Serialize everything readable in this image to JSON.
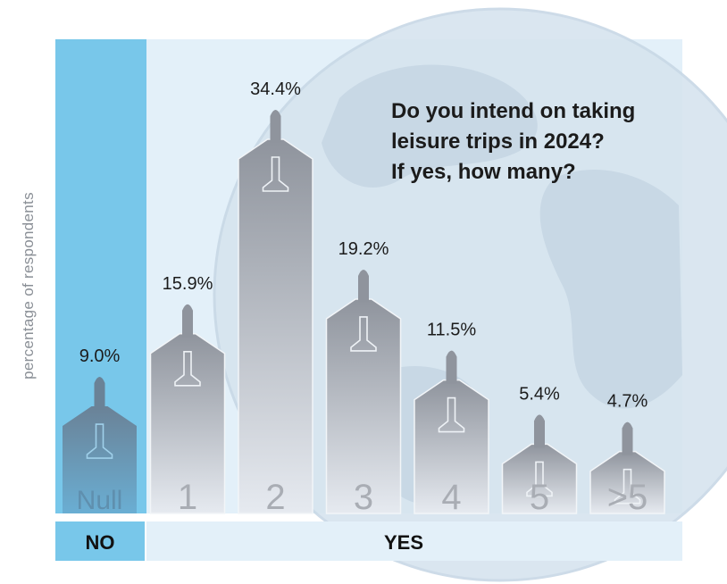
{
  "chart_data": {
    "type": "bar",
    "title_lines": [
      "Do you intend on taking",
      "leisure trips in 2024?",
      "If yes, how many?"
    ],
    "ylabel": "percentage of respondents",
    "categories": [
      "Null",
      "1",
      "2",
      "3",
      "4",
      "5",
      ">5"
    ],
    "values": [
      9.0,
      15.9,
      34.4,
      19.2,
      11.5,
      5.4,
      4.7
    ],
    "value_labels": [
      "9.0%",
      "15.9%",
      "34.4%",
      "19.2%",
      "11.5%",
      "5.4%",
      "4.7%"
    ],
    "groups": [
      {
        "label": "NO",
        "categories": [
          "Null"
        ]
      },
      {
        "label": "YES",
        "categories": [
          "1",
          "2",
          "3",
          "4",
          "5",
          ">5"
        ]
      }
    ],
    "ylim": [
      0,
      34.4
    ],
    "grid": false,
    "colors": {
      "no_panel": "#78c7ea",
      "yes_panel": "#e3f0f9",
      "bar_top": "#8f949d",
      "bar_bottom": "#e6eaf0",
      "globe": "#cfdde8",
      "category_text": "#a9adb4",
      "value_text": "#1b1b1b"
    }
  }
}
